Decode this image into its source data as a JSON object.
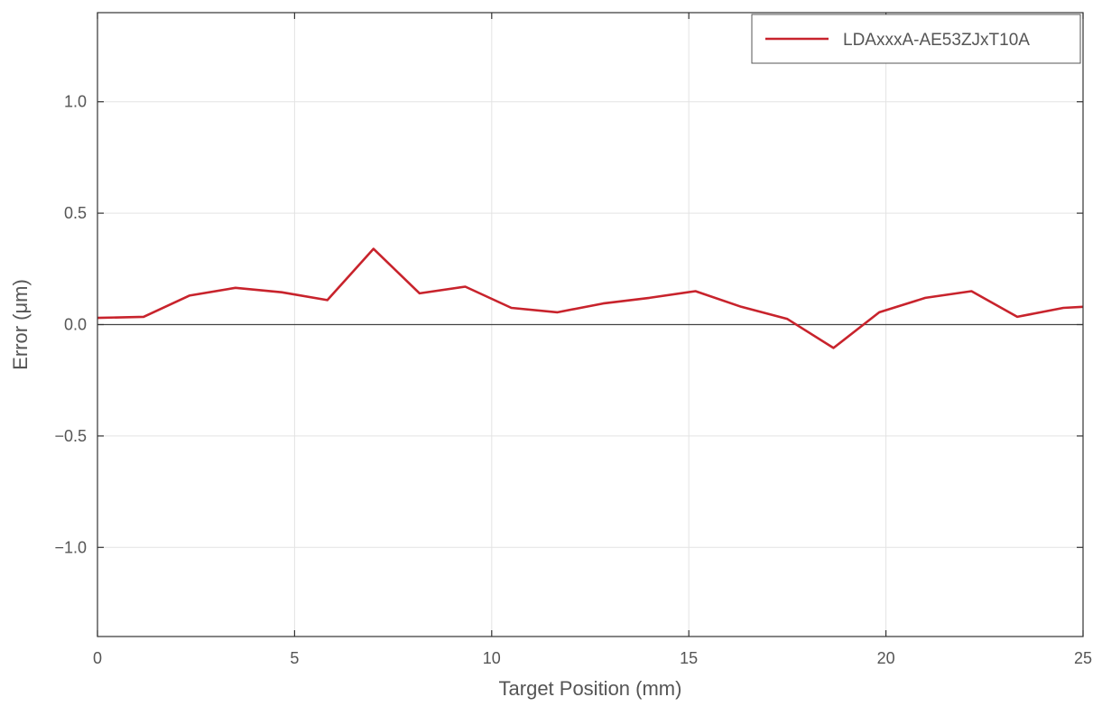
{
  "chart_data": {
    "type": "line",
    "xlabel": "Target Position (mm)",
    "ylabel": "Error (μm)",
    "xlim": [
      0,
      25
    ],
    "ylim": [
      -1.4,
      1.4
    ],
    "xticks": [
      0,
      5,
      10,
      15,
      20,
      25
    ],
    "xtick_labels": [
      "0",
      "5",
      "10",
      "15",
      "20",
      "25"
    ],
    "yticks": [
      1.0,
      0.5,
      0.0,
      -0.5,
      -1.0
    ],
    "ytick_labels": [
      "1.0",
      "0.5",
      "0.0",
      "−0.5",
      "−1.0"
    ],
    "grid": true,
    "legend": {
      "position": "top-right"
    },
    "series": [
      {
        "name": "LDAxxxA-AE53ZJxT10A",
        "color": "#c8232c",
        "x": [
          0,
          1.17,
          2.33,
          3.5,
          4.67,
          5.83,
          7.0,
          8.17,
          9.33,
          10.5,
          11.67,
          12.83,
          14.0,
          15.17,
          16.33,
          17.5,
          18.67,
          19.83,
          21.0,
          22.17,
          23.33,
          24.5,
          25.0
        ],
        "values": [
          0.03,
          0.035,
          0.13,
          0.165,
          0.145,
          0.11,
          0.34,
          0.14,
          0.17,
          0.075,
          0.055,
          0.095,
          0.12,
          0.15,
          0.08,
          0.025,
          -0.105,
          0.055,
          0.12,
          0.15,
          0.035,
          0.075,
          0.08
        ]
      }
    ]
  }
}
